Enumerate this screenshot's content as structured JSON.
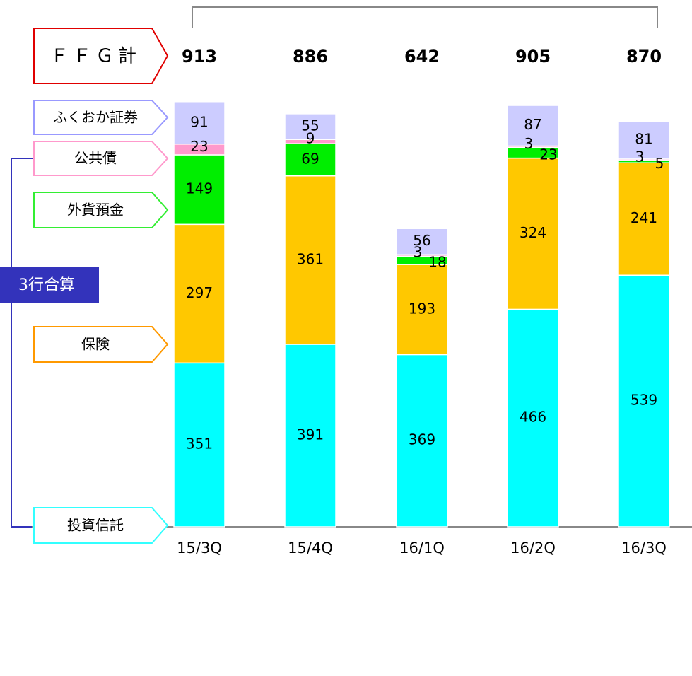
{
  "chart_data": {
    "type": "stacked_bar",
    "categories": [
      "15/3Q",
      "15/4Q",
      "16/1Q",
      "16/2Q",
      "16/3Q"
    ],
    "series": [
      {
        "name": "投資信託",
        "color": "#00ffff",
        "values": [
          351,
          391,
          369,
          466,
          539
        ]
      },
      {
        "name": "保険",
        "color": "#ffc800",
        "values": [
          297,
          361,
          193,
          324,
          241
        ]
      },
      {
        "name": "外貨預金",
        "color": "#00ee00",
        "values": [
          149,
          69,
          18,
          23,
          5
        ]
      },
      {
        "name": "公共債",
        "color": "#ff99cc",
        "values": [
          23,
          9,
          3,
          3,
          3
        ]
      },
      {
        "name": "ふくおか証券",
        "color": "#ccccff",
        "values": [
          91,
          55,
          56,
          87,
          81
        ]
      }
    ],
    "total_label": "ＦＦＧ計",
    "totals": [
      913,
      886,
      642,
      905,
      870
    ],
    "group_label": "3行合算"
  }
}
